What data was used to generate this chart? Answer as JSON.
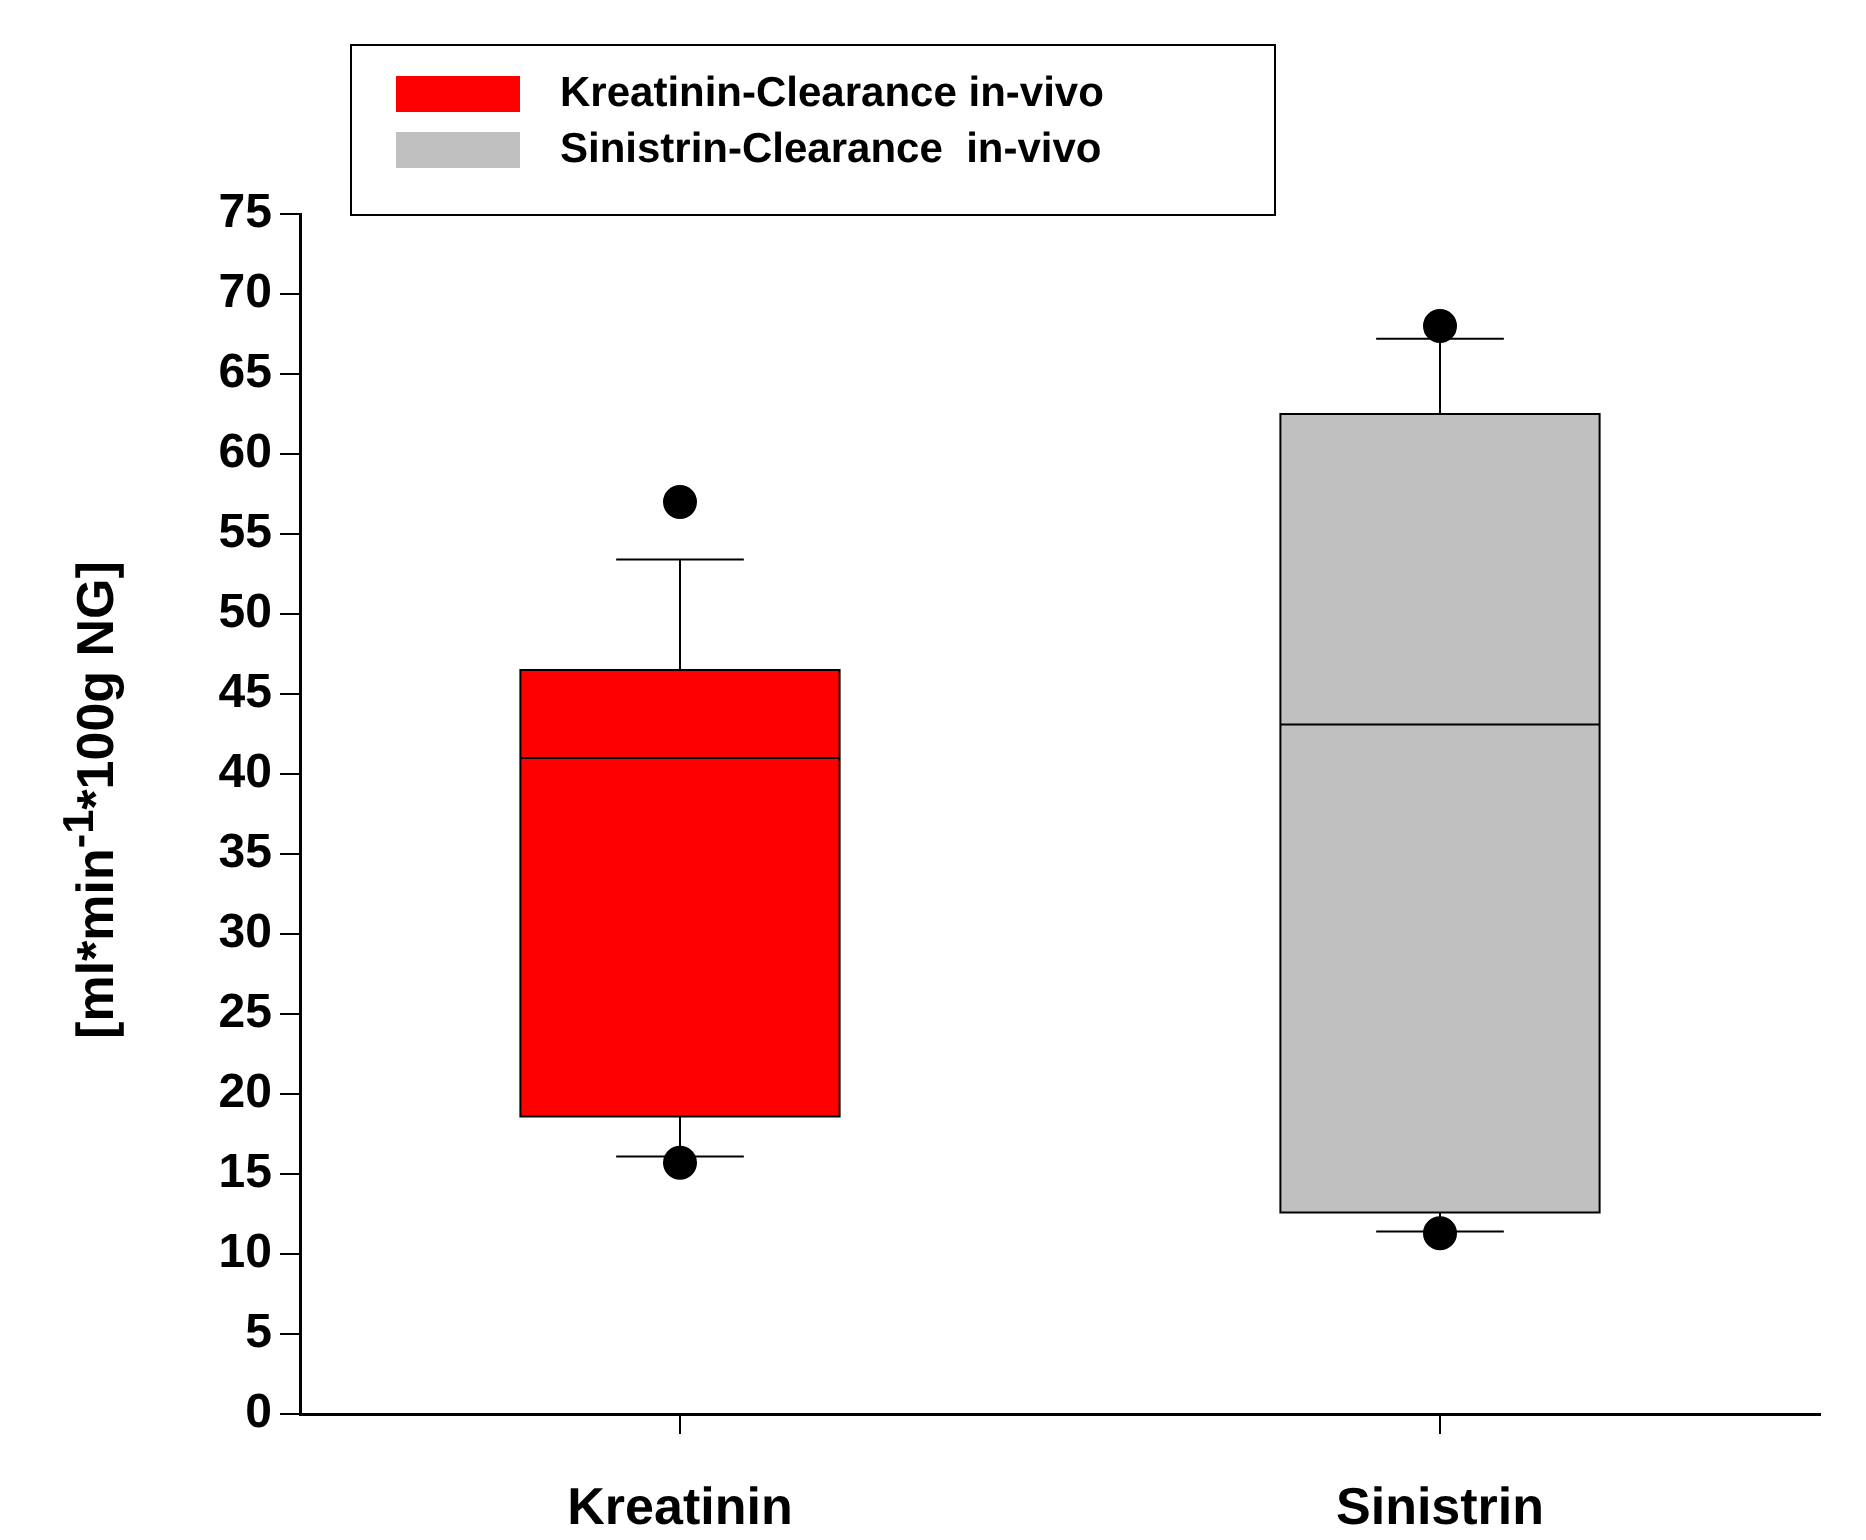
{
  "chart_data": {
    "type": "box",
    "ylabel": "[ml*min$^{-1}$*100g NG]",
    "categories": [
      "Kreatinin",
      "Sinistrin"
    ],
    "series": [
      {
        "name": "Kreatinin-Clearance in-vivo",
        "color": "#ff0000",
        "boxes": [
          {
            "low": 16.1,
            "q1": 18.6,
            "median": 41.0,
            "q3": 46.5,
            "high": 53.4,
            "outliers": [
              57.0,
              15.7
            ]
          },
          null
        ]
      },
      {
        "name": "Sinistrin-Clearance  in-vivo",
        "color": "#c0c0c0",
        "boxes": [
          null,
          {
            "low": 11.4,
            "q1": 12.6,
            "median": 43.1,
            "q3": 62.5,
            "high": 67.2,
            "outliers": [
              68.0,
              11.3
            ]
          }
        ]
      }
    ],
    "ylim": [
      0,
      75
    ],
    "yticks": [
      0,
      5,
      10,
      15,
      20,
      25,
      30,
      35,
      40,
      45,
      50,
      55,
      60,
      65,
      70,
      75
    ],
    "legend": "top",
    "grid": false
  }
}
